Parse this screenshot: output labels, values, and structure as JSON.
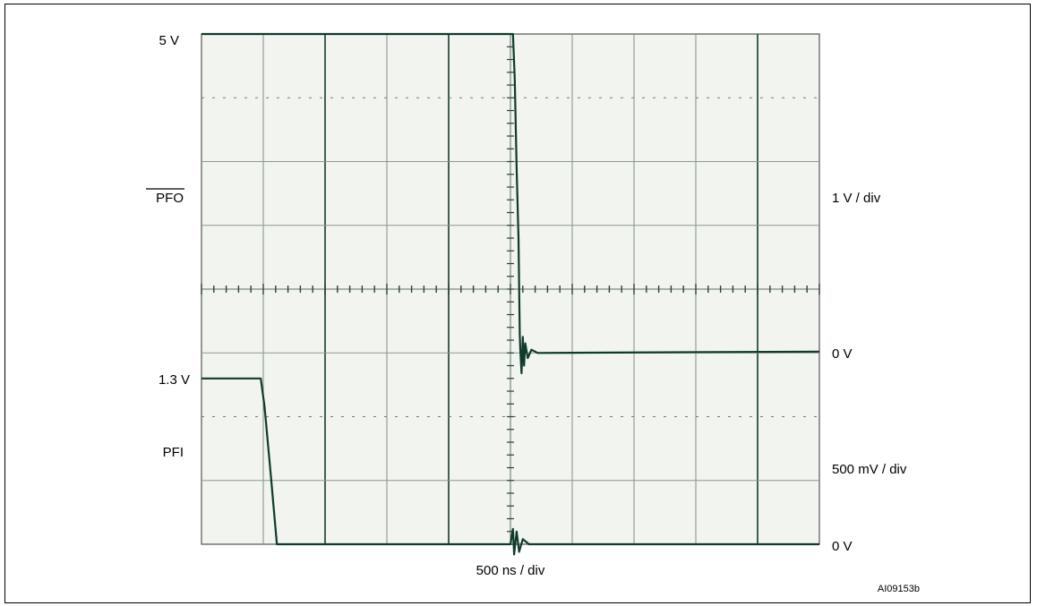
{
  "chart_data": {
    "type": "line",
    "title": "",
    "x_axis": {
      "label": "500 ns / div",
      "divisions": 10,
      "unit_per_div_ns": 500,
      "xlim_ns": [
        0,
        5000
      ]
    },
    "y_axis": {
      "divisions": 8
    },
    "grid": true,
    "footer_code": "AI09153b",
    "series": [
      {
        "name": "PFO",
        "overline": true,
        "scale_label": "1 V / div",
        "level_labels": {
          "high": "5 V",
          "low": "0 V"
        },
        "volts_per_div": 1,
        "zero_div": 3,
        "points_ns_V": [
          [
            0,
            5.0
          ],
          [
            2480,
            5.0
          ],
          [
            2520,
            5.0
          ],
          [
            2535,
            4.3
          ],
          [
            2550,
            2.9
          ],
          [
            2565,
            1.8
          ],
          [
            2575,
            0.3
          ],
          [
            2580,
            0.05
          ],
          [
            2590,
            -0.32
          ],
          [
            2600,
            0.25
          ],
          [
            2610,
            -0.2
          ],
          [
            2620,
            0.15
          ],
          [
            2640,
            -0.08
          ],
          [
            2670,
            0.05
          ],
          [
            2720,
            0.0
          ],
          [
            5000,
            0.02
          ]
        ]
      },
      {
        "name": "PFI",
        "overline": false,
        "scale_label": "500 mV / div",
        "level_labels": {
          "high": "1.3 V",
          "low": "0 V"
        },
        "volts_per_div": 0.5,
        "zero_div": 0,
        "points_ns_V": [
          [
            0,
            1.3
          ],
          [
            480,
            1.3
          ],
          [
            510,
            1.08
          ],
          [
            560,
            0.55
          ],
          [
            610,
            0.0
          ],
          [
            640,
            0.0
          ],
          [
            2500,
            0.0
          ],
          [
            2520,
            0.12
          ],
          [
            2530,
            -0.08
          ],
          [
            2550,
            0.1
          ],
          [
            2570,
            -0.06
          ],
          [
            2600,
            0.04
          ],
          [
            2650,
            0.0
          ],
          [
            5000,
            0.0
          ]
        ]
      }
    ]
  }
}
